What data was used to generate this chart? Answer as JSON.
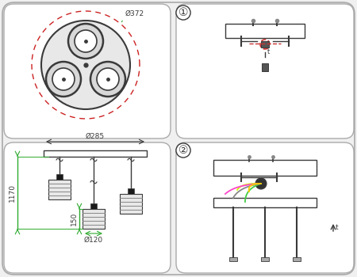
{
  "bg_color": "#f0f0f0",
  "panel_color": "#ffffff",
  "dark_gray": "#3a3a3a",
  "mid_gray": "#888888",
  "light_gray": "#bbbbbb",
  "green": "#2eaa2e",
  "red_dash": "#cc2222",
  "dim_1170": "1170",
  "dim_150": "150",
  "dim_285": "Ø285",
  "dim_372": "Ø372",
  "dim_120": "Ø120",
  "label1": "①",
  "label2": "②",
  "wire_colors": [
    "#ccff00",
    "#ff88cc",
    "#44cc44",
    "#aaaaaa"
  ],
  "wire_colors2": [
    "#ccff00",
    "#ff44cc",
    "#44cc44",
    "#888888",
    "#ffcc00"
  ]
}
